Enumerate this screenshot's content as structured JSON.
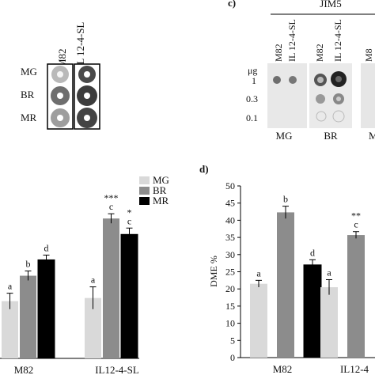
{
  "panel_a": {
    "columns": [
      "M82",
      "IL 12-4-SL"
    ],
    "rows": [
      "MG",
      "BR",
      "MR"
    ]
  },
  "panel_c": {
    "label": "c)",
    "antibody": "JIM5",
    "ug_label": "μg",
    "doses": [
      "1",
      "0.3",
      "0.1"
    ],
    "lanes": [
      "M82",
      "IL 12-4-SL",
      "M82",
      "IL 12-4-SL",
      "M8"
    ],
    "groups": [
      "MG",
      "BR",
      "M"
    ]
  },
  "panel_d": {
    "label": "d)"
  },
  "chart_data": [
    {
      "type": "bar",
      "panel": "left",
      "categories": [
        "M82",
        "IL12-4-SL"
      ],
      "series": [
        {
          "name": "MG",
          "color": "#d9d9d9",
          "values": [
            18,
            19
          ],
          "errors": [
            2.5,
            3.5
          ]
        },
        {
          "name": "BR",
          "color": "#8c8c8c",
          "values": [
            26,
            44
          ],
          "errors": [
            1.5,
            1.5
          ]
        },
        {
          "name": "MR",
          "color": "#000000",
          "values": [
            31,
            39
          ],
          "errors": [
            1.5,
            2.0
          ]
        }
      ],
      "bar_letters": [
        [
          "a",
          "b",
          "d"
        ],
        [
          "a",
          "c",
          "c"
        ]
      ],
      "bar_stars": [
        [
          "",
          "",
          ""
        ],
        [
          "",
          "***",
          "*"
        ]
      ],
      "ylim": [
        0,
        55
      ],
      "legend": "top-right"
    },
    {
      "type": "bar",
      "panel": "d",
      "categories": [
        "M82",
        "IL12-4"
      ],
      "series": [
        {
          "name": "MG",
          "color": "#d9d9d9",
          "values": [
            21.5,
            20.5
          ],
          "errors": [
            1.0,
            2.2
          ]
        },
        {
          "name": "BR",
          "color": "#8c8c8c",
          "values": [
            42.3,
            35.7
          ],
          "errors": [
            1.8,
            1.0
          ]
        },
        {
          "name": "MR",
          "color": "#000000",
          "values": [
            27.0,
            null
          ],
          "errors": [
            1.5,
            null
          ]
        }
      ],
      "bar_letters": [
        [
          "a",
          "b",
          "d"
        ],
        [
          "a",
          "c",
          ""
        ]
      ],
      "bar_stars": [
        [
          "",
          "",
          ""
        ],
        [
          "",
          "**",
          ""
        ]
      ],
      "ylabel": "DME %",
      "ylim": [
        0,
        50
      ],
      "yticks": [
        0,
        5,
        10,
        15,
        20,
        25,
        30,
        35,
        40,
        45,
        50
      ]
    }
  ]
}
